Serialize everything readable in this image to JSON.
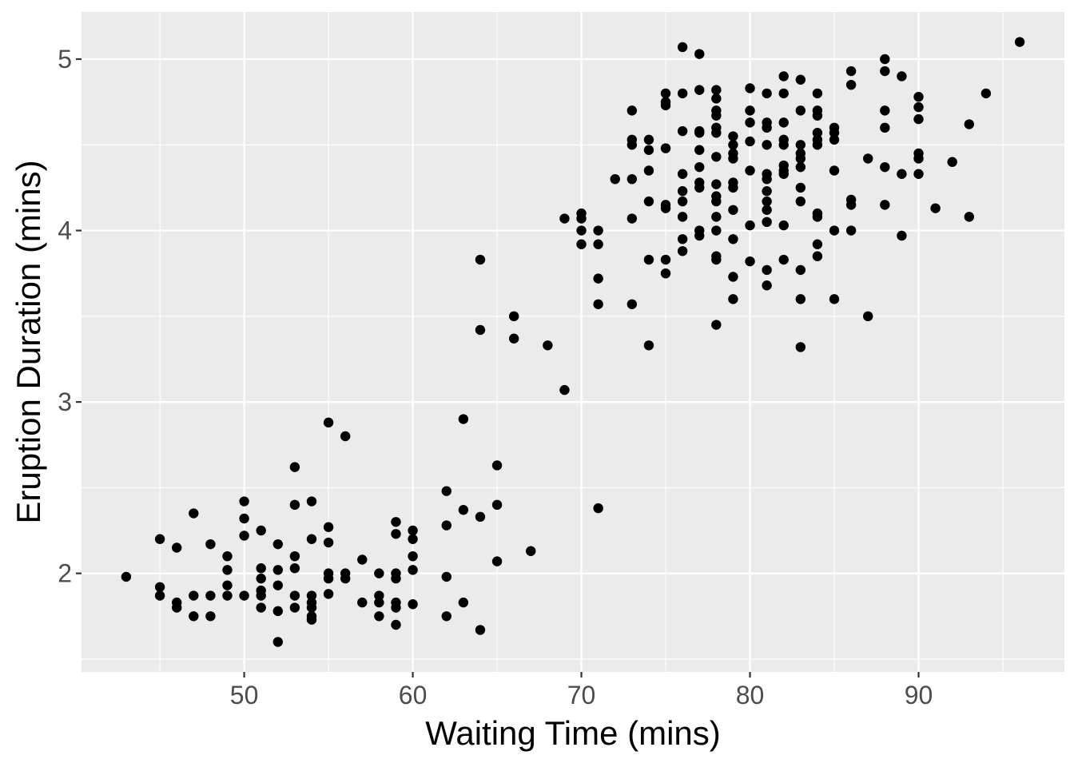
{
  "chart_data": {
    "type": "scatter",
    "title": "",
    "xlabel": "Waiting Time (mins)",
    "ylabel": "Eruption Duration (mins)",
    "xlim": [
      40.35,
      98.65
    ],
    "ylim": [
      1.425,
      5.275
    ],
    "x_ticks": [
      50,
      60,
      70,
      80,
      90
    ],
    "y_ticks": [
      2,
      3,
      4,
      5
    ],
    "x_tick_labels": [
      "50",
      "60",
      "70",
      "80",
      "90"
    ],
    "y_tick_labels": [
      "2",
      "3",
      "4",
      "5"
    ],
    "grid": true,
    "panel_background": "#EBEBEB",
    "point_color": "#000000",
    "legend": "none",
    "series": [
      {
        "points": [
          [
            43,
            1.98
          ],
          [
            45,
            2.2
          ],
          [
            45,
            1.92
          ],
          [
            45,
            1.87
          ],
          [
            46,
            1.83
          ],
          [
            46,
            1.8
          ],
          [
            46,
            2.15
          ],
          [
            47,
            2.35
          ],
          [
            47,
            1.87
          ],
          [
            47,
            1.75
          ],
          [
            48,
            2.17
          ],
          [
            48,
            1.87
          ],
          [
            48,
            1.75
          ],
          [
            49,
            2.1
          ],
          [
            49,
            2.02
          ],
          [
            49,
            1.93
          ],
          [
            49,
            1.87
          ],
          [
            50,
            2.42
          ],
          [
            50,
            2.32
          ],
          [
            50,
            2.22
          ],
          [
            50,
            1.87
          ],
          [
            51,
            2.25
          ],
          [
            51,
            2.03
          ],
          [
            51,
            1.97
          ],
          [
            51,
            1.9
          ],
          [
            51,
            1.87
          ],
          [
            51,
            1.8
          ],
          [
            52,
            2.17
          ],
          [
            52,
            2.02
          ],
          [
            52,
            1.93
          ],
          [
            52,
            1.78
          ],
          [
            52,
            1.6
          ],
          [
            53,
            2.62
          ],
          [
            53,
            2.4
          ],
          [
            53,
            2.1
          ],
          [
            53,
            2.03
          ],
          [
            53,
            1.87
          ],
          [
            53,
            1.8
          ],
          [
            54,
            2.42
          ],
          [
            54,
            2.2
          ],
          [
            54,
            1.87
          ],
          [
            54,
            1.83
          ],
          [
            54,
            1.8
          ],
          [
            54,
            1.75
          ],
          [
            54,
            1.73
          ],
          [
            55,
            2.88
          ],
          [
            55,
            2.27
          ],
          [
            55,
            2.18
          ],
          [
            55,
            2.0
          ],
          [
            55,
            1.97
          ],
          [
            55,
            1.88
          ],
          [
            56,
            2.8
          ],
          [
            56,
            2.0
          ],
          [
            56,
            1.97
          ],
          [
            57,
            2.08
          ],
          [
            57,
            1.83
          ],
          [
            58,
            2.0
          ],
          [
            58,
            1.87
          ],
          [
            58,
            1.83
          ],
          [
            58,
            1.75
          ],
          [
            59,
            2.3
          ],
          [
            59,
            2.23
          ],
          [
            59,
            2.0
          ],
          [
            59,
            1.97
          ],
          [
            59,
            1.83
          ],
          [
            59,
            1.8
          ],
          [
            59,
            1.7
          ],
          [
            60,
            2.25
          ],
          [
            60,
            2.2
          ],
          [
            60,
            2.1
          ],
          [
            60,
            2.02
          ],
          [
            60,
            1.82
          ],
          [
            62,
            2.48
          ],
          [
            62,
            2.28
          ],
          [
            62,
            1.98
          ],
          [
            62,
            1.75
          ],
          [
            63,
            2.9
          ],
          [
            63,
            2.37
          ],
          [
            63,
            1.83
          ],
          [
            64,
            3.83
          ],
          [
            64,
            3.42
          ],
          [
            64,
            2.33
          ],
          [
            64,
            1.67
          ],
          [
            65,
            2.63
          ],
          [
            65,
            2.4
          ],
          [
            65,
            2.07
          ],
          [
            66,
            3.5
          ],
          [
            66,
            3.37
          ],
          [
            67,
            2.13
          ],
          [
            68,
            3.33
          ],
          [
            69,
            4.07
          ],
          [
            69,
            3.07
          ],
          [
            70,
            4.1
          ],
          [
            70,
            4.07
          ],
          [
            70,
            4.0
          ],
          [
            70,
            3.92
          ],
          [
            71,
            4.0
          ],
          [
            71,
            3.92
          ],
          [
            71,
            3.72
          ],
          [
            71,
            3.57
          ],
          [
            71,
            2.38
          ],
          [
            72,
            4.3
          ],
          [
            73,
            4.7
          ],
          [
            73,
            4.53
          ],
          [
            73,
            4.5
          ],
          [
            73,
            4.3
          ],
          [
            73,
            4.07
          ],
          [
            73,
            3.57
          ],
          [
            74,
            4.53
          ],
          [
            74,
            4.47
          ],
          [
            74,
            4.35
          ],
          [
            74,
            4.17
          ],
          [
            74,
            3.83
          ],
          [
            74,
            3.33
          ],
          [
            75,
            4.8
          ],
          [
            75,
            4.75
          ],
          [
            75,
            4.73
          ],
          [
            75,
            4.48
          ],
          [
            75,
            4.15
          ],
          [
            75,
            4.13
          ],
          [
            75,
            3.83
          ],
          [
            75,
            3.75
          ],
          [
            76,
            5.07
          ],
          [
            76,
            4.8
          ],
          [
            76,
            4.58
          ],
          [
            76,
            4.33
          ],
          [
            76,
            4.23
          ],
          [
            76,
            4.17
          ],
          [
            76,
            4.08
          ],
          [
            76,
            3.95
          ],
          [
            76,
            3.88
          ],
          [
            77,
            5.03
          ],
          [
            77,
            4.82
          ],
          [
            77,
            4.58
          ],
          [
            77,
            4.57
          ],
          [
            77,
            4.47
          ],
          [
            77,
            4.37
          ],
          [
            77,
            4.28
          ],
          [
            77,
            4.25
          ],
          [
            77,
            4.0
          ],
          [
            77,
            3.97
          ],
          [
            78,
            4.82
          ],
          [
            78,
            4.77
          ],
          [
            78,
            4.7
          ],
          [
            78,
            4.67
          ],
          [
            78,
            4.6
          ],
          [
            78,
            4.57
          ],
          [
            78,
            4.43
          ],
          [
            78,
            4.27
          ],
          [
            78,
            4.2
          ],
          [
            78,
            4.17
          ],
          [
            78,
            4.08
          ],
          [
            78,
            4.0
          ],
          [
            78,
            3.85
          ],
          [
            78,
            3.83
          ],
          [
            78,
            3.45
          ],
          [
            79,
            4.55
          ],
          [
            79,
            4.5
          ],
          [
            79,
            4.45
          ],
          [
            79,
            4.42
          ],
          [
            79,
            4.28
          ],
          [
            79,
            4.25
          ],
          [
            79,
            4.12
          ],
          [
            79,
            3.95
          ],
          [
            79,
            3.73
          ],
          [
            79,
            3.6
          ],
          [
            80,
            4.83
          ],
          [
            80,
            4.7
          ],
          [
            80,
            4.63
          ],
          [
            80,
            4.52
          ],
          [
            80,
            4.35
          ],
          [
            80,
            4.03
          ],
          [
            80,
            3.82
          ],
          [
            81,
            4.8
          ],
          [
            81,
            4.63
          ],
          [
            81,
            4.6
          ],
          [
            81,
            4.5
          ],
          [
            81,
            4.33
          ],
          [
            81,
            4.3
          ],
          [
            81,
            4.23
          ],
          [
            81,
            4.17
          ],
          [
            81,
            4.12
          ],
          [
            81,
            4.05
          ],
          [
            81,
            3.77
          ],
          [
            81,
            3.68
          ],
          [
            82,
            4.9
          ],
          [
            82,
            4.8
          ],
          [
            82,
            4.63
          ],
          [
            82,
            4.53
          ],
          [
            82,
            4.5
          ],
          [
            82,
            4.38
          ],
          [
            82,
            4.35
          ],
          [
            82,
            4.33
          ],
          [
            82,
            4.03
          ],
          [
            82,
            3.83
          ],
          [
            83,
            4.88
          ],
          [
            83,
            4.7
          ],
          [
            83,
            4.5
          ],
          [
            83,
            4.45
          ],
          [
            83,
            4.42
          ],
          [
            83,
            4.37
          ],
          [
            83,
            4.25
          ],
          [
            83,
            4.17
          ],
          [
            83,
            3.77
          ],
          [
            83,
            3.6
          ],
          [
            83,
            3.32
          ],
          [
            84,
            4.8
          ],
          [
            84,
            4.7
          ],
          [
            84,
            4.67
          ],
          [
            84,
            4.57
          ],
          [
            84,
            4.53
          ],
          [
            84,
            4.5
          ],
          [
            84,
            4.1
          ],
          [
            84,
            4.08
          ],
          [
            84,
            3.92
          ],
          [
            84,
            3.85
          ],
          [
            85,
            4.6
          ],
          [
            85,
            4.57
          ],
          [
            85,
            4.53
          ],
          [
            85,
            4.35
          ],
          [
            85,
            4.0
          ],
          [
            85,
            3.6
          ],
          [
            86,
            4.93
          ],
          [
            86,
            4.85
          ],
          [
            86,
            4.18
          ],
          [
            86,
            4.15
          ],
          [
            86,
            4.0
          ],
          [
            87,
            4.42
          ],
          [
            87,
            3.5
          ],
          [
            88,
            5.0
          ],
          [
            88,
            4.93
          ],
          [
            88,
            4.7
          ],
          [
            88,
            4.6
          ],
          [
            88,
            4.37
          ],
          [
            88,
            4.15
          ],
          [
            89,
            4.9
          ],
          [
            89,
            4.33
          ],
          [
            89,
            3.97
          ],
          [
            90,
            4.78
          ],
          [
            90,
            4.72
          ],
          [
            90,
            4.65
          ],
          [
            90,
            4.45
          ],
          [
            90,
            4.42
          ],
          [
            90,
            4.33
          ],
          [
            91,
            4.13
          ],
          [
            92,
            4.4
          ],
          [
            93,
            4.62
          ],
          [
            93,
            4.08
          ],
          [
            94,
            4.8
          ],
          [
            96,
            5.1
          ]
        ]
      }
    ]
  }
}
